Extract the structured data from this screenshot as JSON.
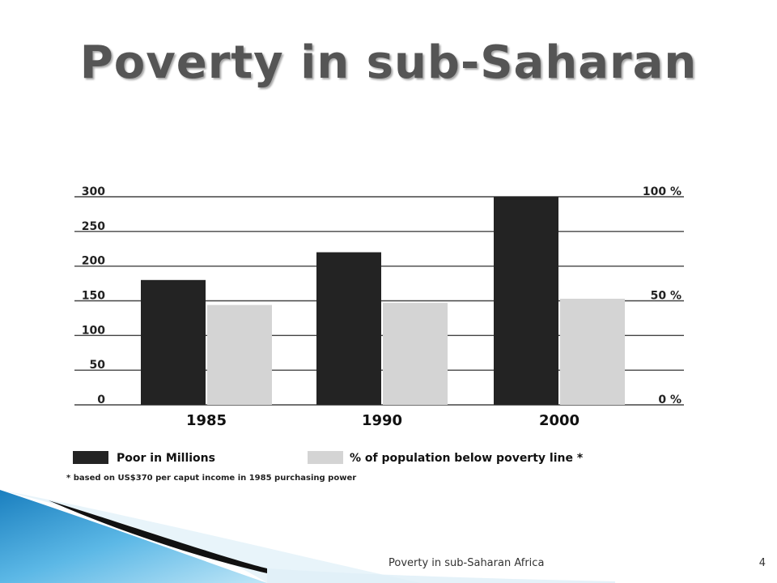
{
  "slide": {
    "title": "Poverty in sub-Saharan",
    "footer": "Poverty in sub-Saharan Africa",
    "page_number": "4"
  },
  "colors": {
    "dark_bar": "#232323",
    "light_bar": "#d4d4d4",
    "gridline": "#444444",
    "title": "#555555",
    "swoosh_blue": "#2a8fc9",
    "swoosh_light": "#9fd3ee"
  },
  "chart_data": {
    "type": "bar",
    "categories": [
      "1985",
      "1990",
      "2000"
    ],
    "series": [
      {
        "name": "Poor in Millions",
        "axis": "left",
        "values": [
          180,
          220,
          300
        ]
      },
      {
        "name": "% of population below poverty line *",
        "axis": "right",
        "values": [
          48,
          49,
          51
        ]
      }
    ],
    "left_axis": {
      "ylim": [
        0,
        300
      ],
      "ticks": [
        "0",
        "50",
        "100",
        "150",
        "200",
        "250",
        "300"
      ]
    },
    "right_axis": {
      "ylim": [
        0,
        100
      ],
      "tick_values": [
        0,
        50,
        100
      ],
      "ticks": [
        "0 %",
        "50 %",
        "100 %"
      ]
    },
    "footnote": "* based on US$370 per caput income in 1985 purchasing power",
    "legend_placement": "bottom",
    "grid": true
  }
}
